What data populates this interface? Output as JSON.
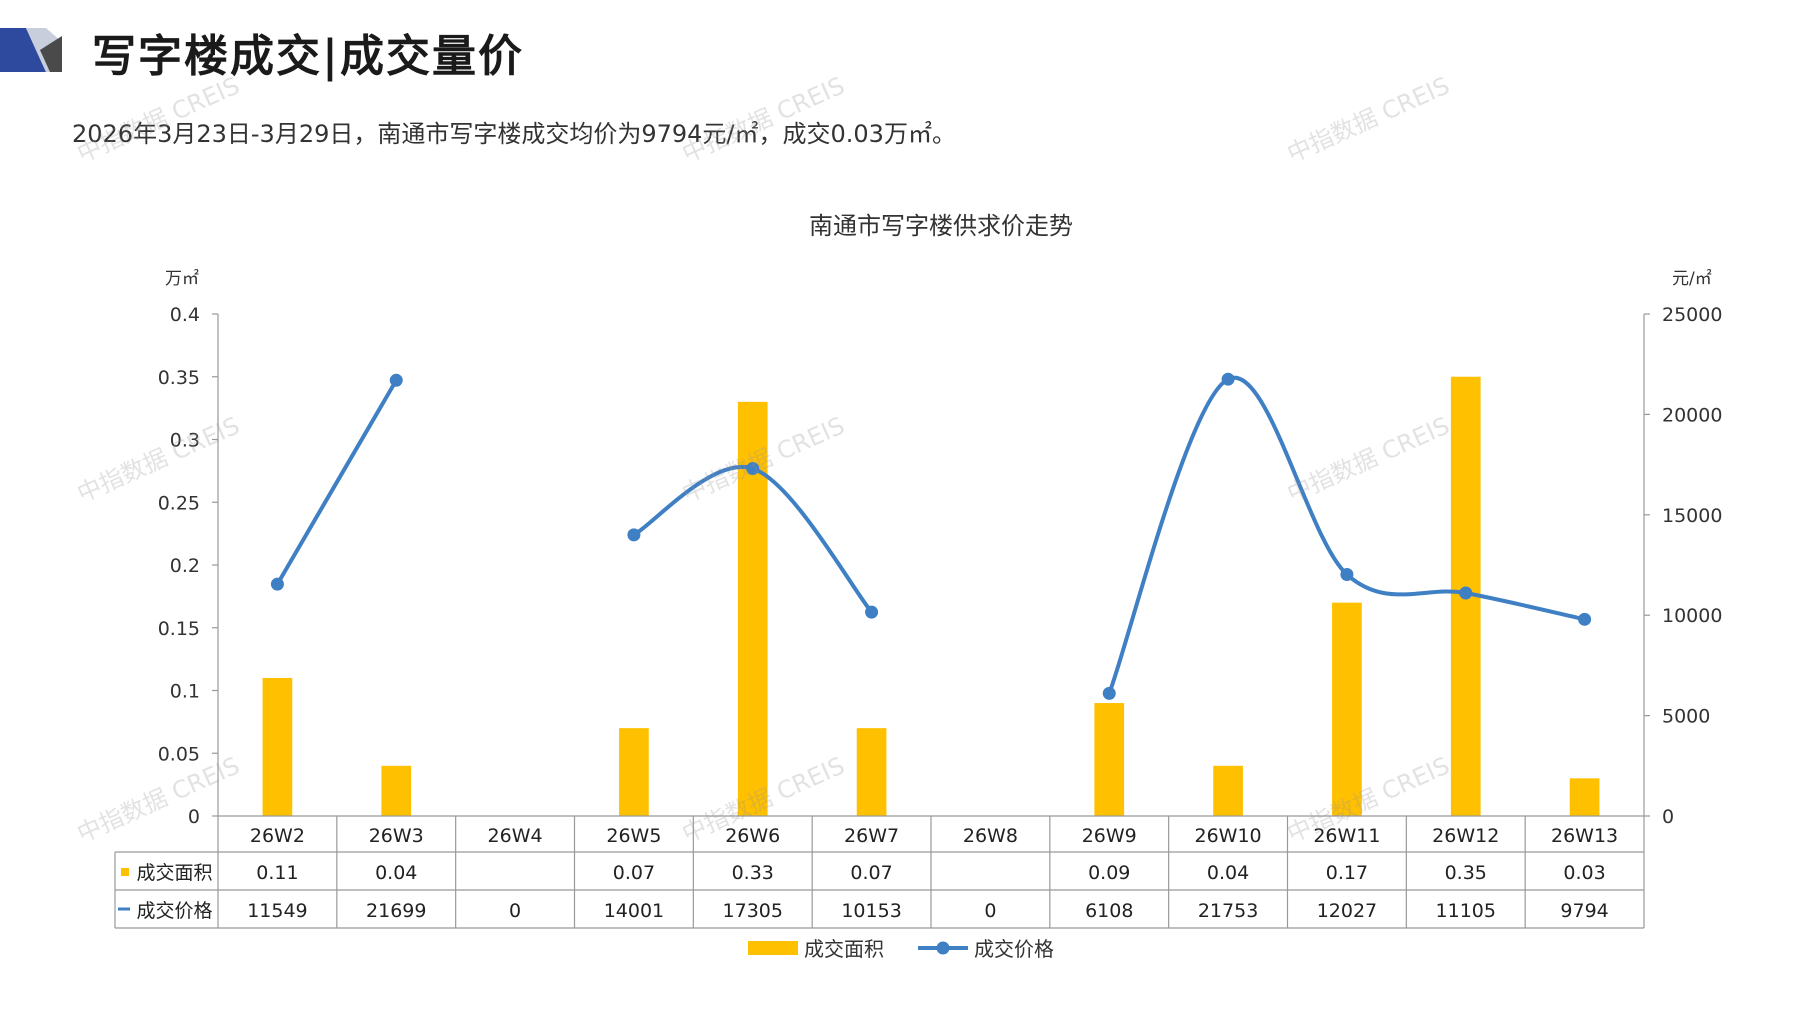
{
  "header": {
    "title": "写字楼成交|成交量价",
    "summary": "2026年3月23日-3月29日，南通市写字楼成交均价为9794元/㎡，成交0.03万㎡。"
  },
  "watermark": {
    "text": "中指数据 CREIS"
  },
  "chart_data": {
    "type": "bar",
    "title": "南通市写字楼供求价走势",
    "ylabel_left": "万㎡",
    "ylabel_right": "元/㎡",
    "ylim_left": [
      0,
      0.4
    ],
    "yticks_left": [
      "0",
      "0.05",
      "0.1",
      "0.15",
      "0.2",
      "0.25",
      "0.3",
      "0.35",
      "0.4"
    ],
    "ylim_right": [
      0,
      25000
    ],
    "yticks_right": [
      "0",
      "5000",
      "10000",
      "15000",
      "20000",
      "25000"
    ],
    "categories": [
      "26W2",
      "26W3",
      "26W4",
      "26W5",
      "26W6",
      "26W7",
      "26W8",
      "26W9",
      "26W10",
      "26W11",
      "26W12",
      "26W13"
    ],
    "series": [
      {
        "name": "成交面积",
        "type": "bar",
        "axis": "left",
        "color": "#FFC000",
        "values": [
          0.11,
          0.04,
          null,
          0.07,
          0.33,
          0.07,
          null,
          0.09,
          0.04,
          0.17,
          0.35,
          0.03
        ],
        "table_values": [
          "0.11",
          "0.04",
          "",
          "0.07",
          "0.33",
          "0.07",
          "",
          "0.09",
          "0.04",
          "0.17",
          "0.35",
          "0.03"
        ]
      },
      {
        "name": "成交价格",
        "type": "line",
        "axis": "right",
        "color": "#3F7FC4",
        "values": [
          11549,
          21699,
          0,
          14001,
          17305,
          10153,
          0,
          6108,
          21753,
          12027,
          11105,
          9794
        ],
        "table_values": [
          "11549",
          "21699",
          "0",
          "14001",
          "17305",
          "10153",
          "0",
          "6108",
          "21753",
          "12027",
          "11105",
          "9794"
        ]
      }
    ],
    "legend_position": "bottom",
    "grid": false,
    "data_table": true
  }
}
